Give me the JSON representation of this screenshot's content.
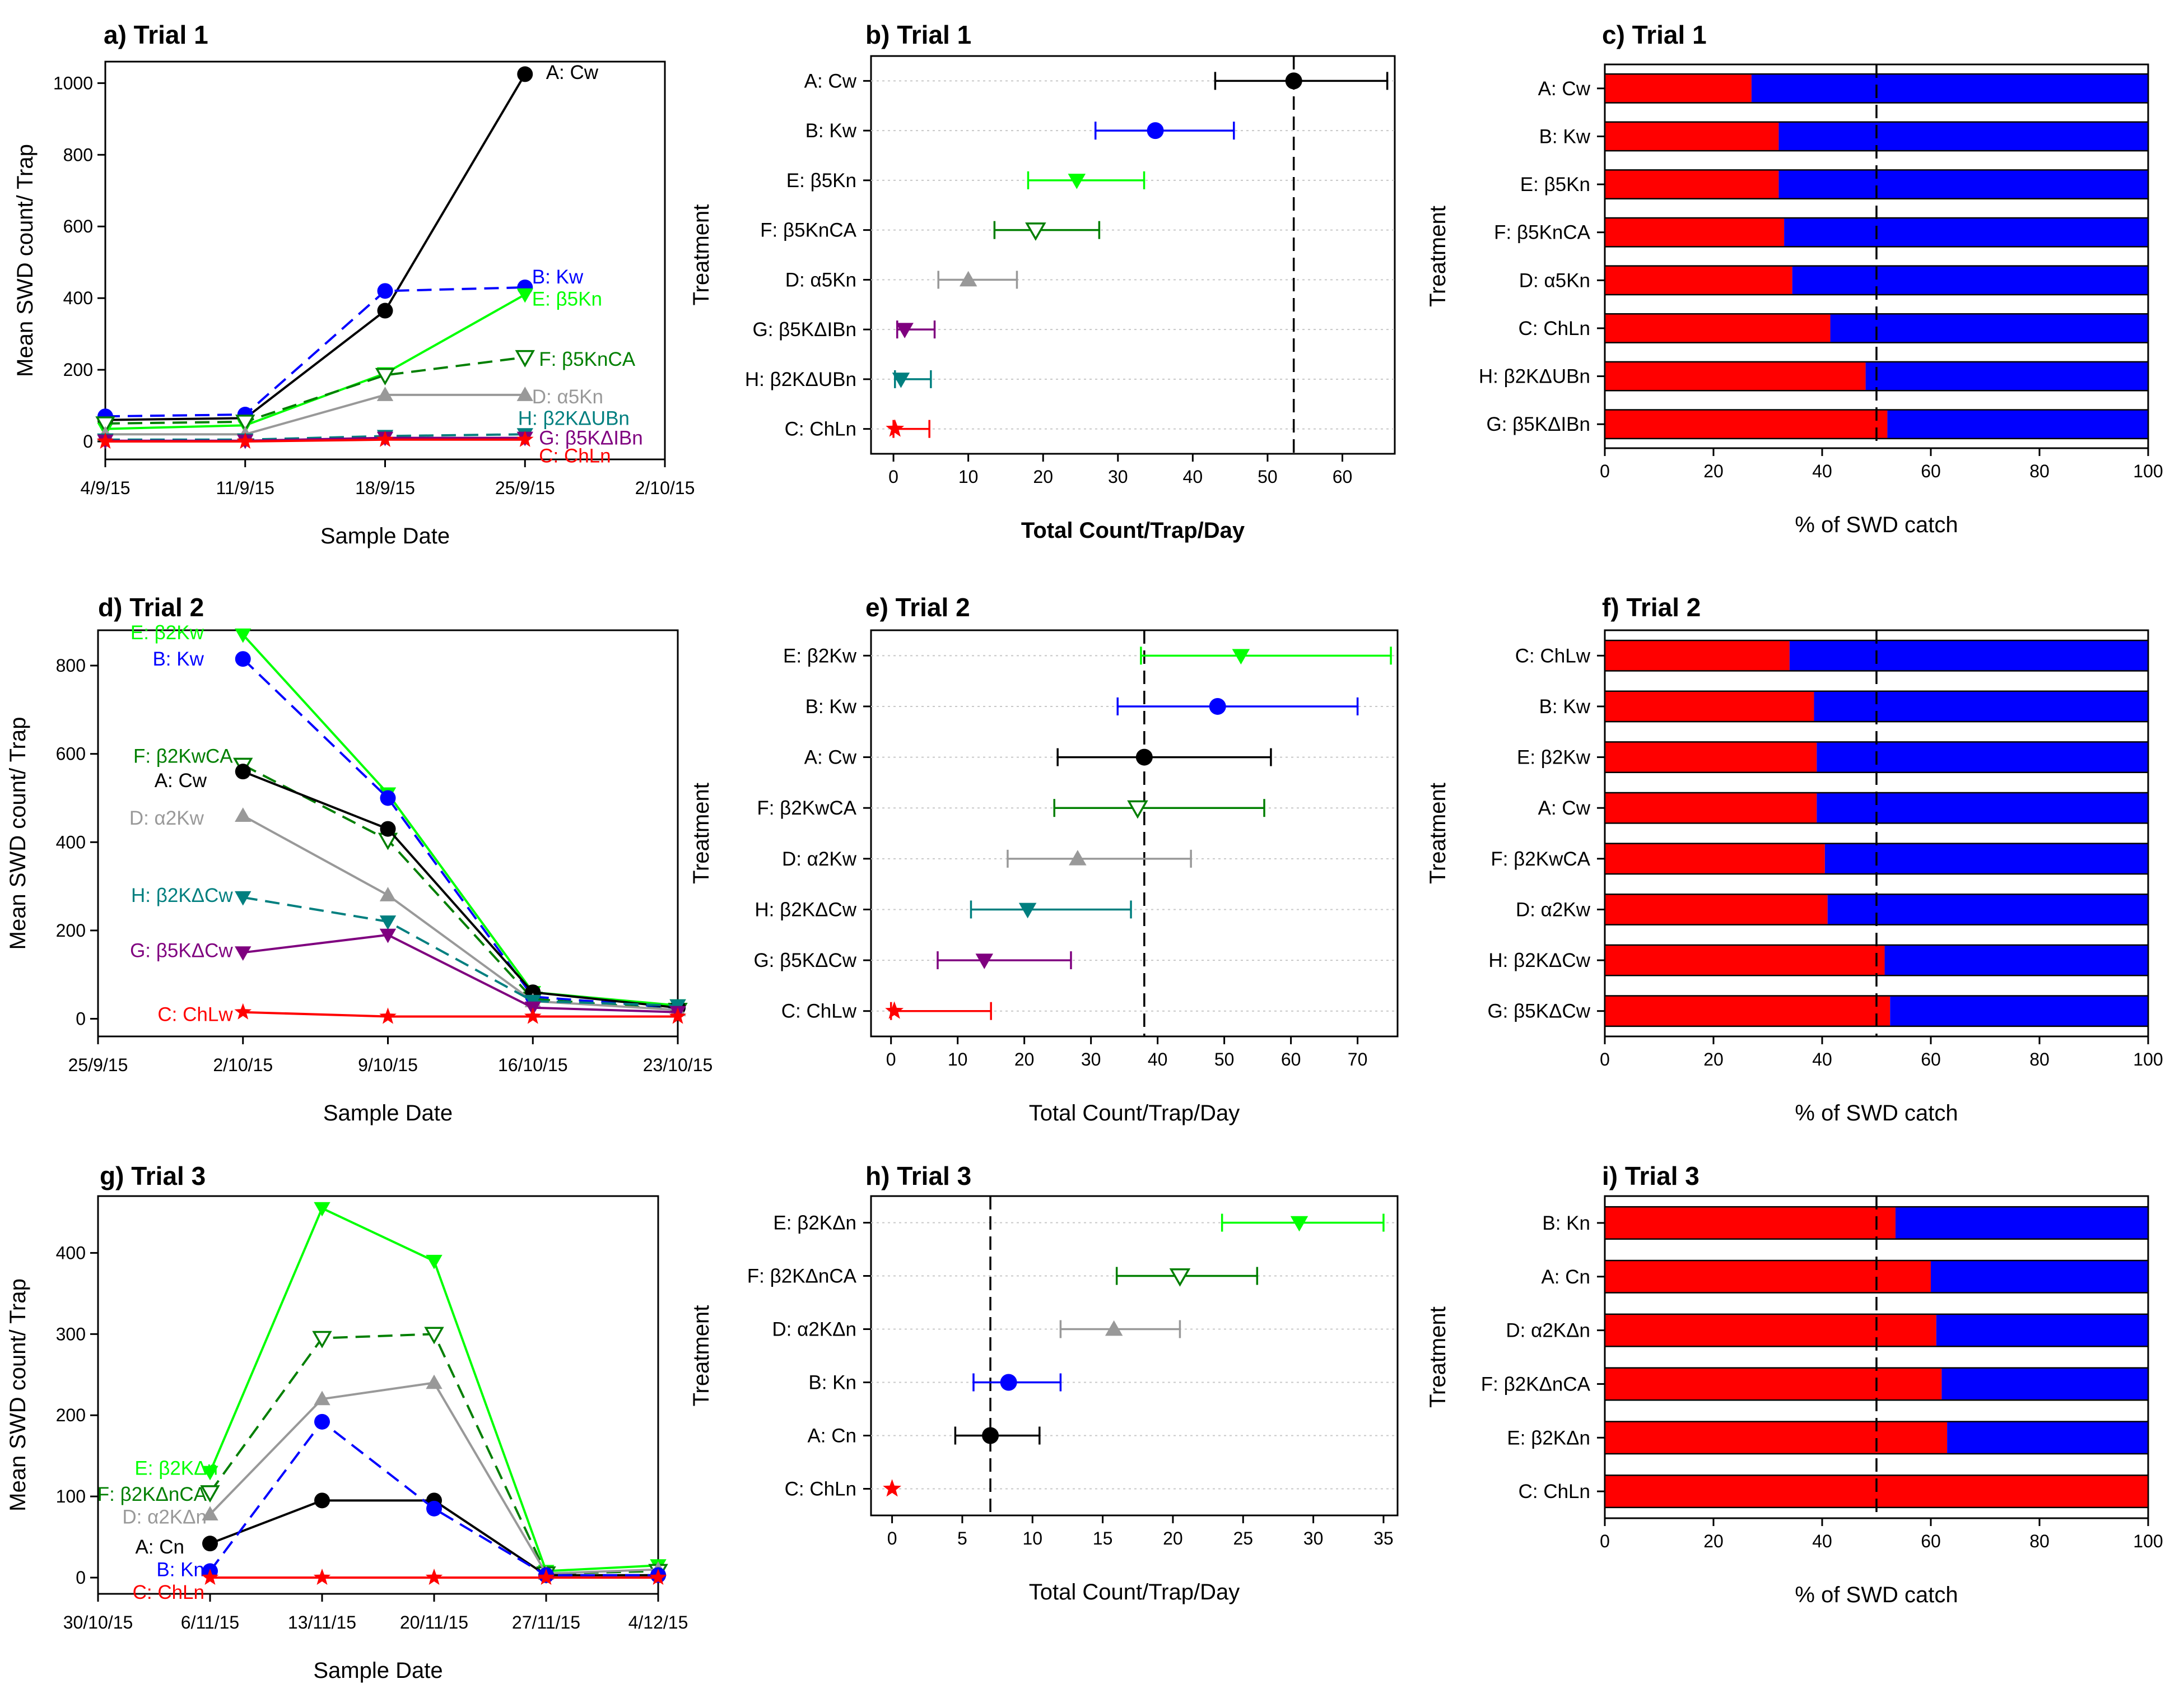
{
  "chart_data": [
    {
      "panel": "a",
      "type": "line",
      "title": "a) Trial 1",
      "xlabel": "Sample Date",
      "ylabel": "Mean SWD count/ Trap",
      "x_ticks": [
        "4/9/15",
        "11/9/15",
        "18/9/15",
        "25/9/15",
        "2/10/15"
      ],
      "xlim": [
        0,
        4
      ],
      "ylim": [
        -50,
        1060
      ],
      "y_ticks": [
        0,
        200,
        400,
        600,
        800,
        1000
      ],
      "series": [
        {
          "name": "A: Cw",
          "color": "#000000",
          "marker": "circle",
          "dash": false,
          "x": [
            0,
            1,
            2,
            3
          ],
          "values": [
            60,
            65,
            365,
            1025
          ],
          "label": "A: Cw",
          "label_x": 3.15,
          "label_y": 1030,
          "label_anchor": "start"
        },
        {
          "name": "B: Kw",
          "color": "#0000ff",
          "marker": "circle",
          "dash": true,
          "x": [
            0,
            1,
            2,
            3
          ],
          "values": [
            70,
            75,
            420,
            430
          ],
          "label": "B: Kw",
          "label_x": 3.05,
          "label_y": 460,
          "label_anchor": "start"
        },
        {
          "name": "E: β5Kn",
          "color": "#00ff00",
          "marker": "tri-down",
          "dash": false,
          "x": [
            0,
            1,
            2,
            3
          ],
          "values": [
            35,
            45,
            190,
            410
          ],
          "label": "E: β5Kn",
          "label_x": 3.05,
          "label_y": 398,
          "label_anchor": "start"
        },
        {
          "name": "F: β5KnCA",
          "color": "#007f00",
          "marker": "tri-down-open",
          "dash": true,
          "x": [
            0,
            1,
            2,
            3
          ],
          "values": [
            50,
            55,
            185,
            235
          ],
          "label": "F: β5KnCA",
          "label_x": 3.1,
          "label_y": 230,
          "label_anchor": "start"
        },
        {
          "name": "D: α5Kn",
          "color": "#999999",
          "marker": "tri-up",
          "dash": false,
          "x": [
            0,
            1,
            2,
            3
          ],
          "values": [
            20,
            20,
            130,
            130
          ],
          "label": "D: α5Kn",
          "label_x": 3.05,
          "label_y": 125,
          "label_anchor": "start"
        },
        {
          "name": "H: β2KΔUBn",
          "color": "#007f7f",
          "marker": "tri-down",
          "dash": true,
          "x": [
            0,
            1,
            2,
            3
          ],
          "values": [
            5,
            5,
            15,
            20
          ],
          "label": "H: β2KΔUBn",
          "label_x": 2.95,
          "label_y": 65,
          "label_anchor": "start"
        },
        {
          "name": "G: β5KΔIBn",
          "color": "#7f007f",
          "marker": "tri-down",
          "dash": false,
          "x": [
            0,
            1,
            2,
            3
          ],
          "values": [
            2,
            2,
            10,
            10
          ],
          "label": "G: β5KΔIBn",
          "label_x": 3.1,
          "label_y": 10,
          "label_anchor": "start"
        },
        {
          "name": "C: ChLn",
          "color": "#ff0000",
          "marker": "star",
          "dash": false,
          "x": [
            0,
            1,
            2,
            3
          ],
          "values": [
            0,
            0,
            5,
            5
          ],
          "label": "C: ChLn",
          "label_x": 3.1,
          "label_y": -40,
          "label_anchor": "start"
        }
      ]
    },
    {
      "panel": "b",
      "type": "dot",
      "title": "b) Trial 1",
      "xlabel": "Total Count/Trap/Day",
      "ylabel": "Treatment",
      "xlim": [
        -3,
        67
      ],
      "x_ticks": [
        0,
        10,
        20,
        30,
        40,
        50,
        60
      ],
      "reference_line": 53.5,
      "categories": [
        "A: Cw",
        "B: Kw",
        "E: β5Kn",
        "F: β5KnCA",
        "D: α5Kn",
        "G: β5KΔIBn",
        "H: β2KΔUBn",
        "C: ChLn"
      ],
      "values": [
        53.5,
        35,
        24.5,
        19,
        10,
        1.5,
        1,
        0.2
      ],
      "lower": [
        43,
        27,
        18,
        13.5,
        6,
        0.5,
        0.2,
        0
      ],
      "upper": [
        66,
        45.5,
        33.5,
        27.5,
        16.5,
        5.5,
        5,
        4.8
      ],
      "colors": [
        "#000000",
        "#0000ff",
        "#00ff00",
        "#007f00",
        "#999999",
        "#7f007f",
        "#007f7f",
        "#ff0000"
      ],
      "markers": [
        "circle",
        "circle",
        "tri-down",
        "tri-down-open",
        "tri-up",
        "tri-down",
        "tri-down",
        "star"
      ]
    },
    {
      "panel": "c",
      "type": "bar",
      "title": "c) Trial 1",
      "xlabel": "% of SWD catch",
      "ylabel": "Treatment",
      "xlim": [
        0,
        100
      ],
      "x_ticks": [
        0,
        20,
        40,
        60,
        80,
        100
      ],
      "reference_line": 50,
      "categories": [
        "A: Cw",
        "B: Kw",
        "E: β5Kn",
        "F: β5KnCA",
        "D: α5Kn",
        "C: ChLn",
        "H: β2KΔUBn",
        "G: β5KΔIBn"
      ],
      "values": [
        27,
        32,
        32,
        33,
        34.5,
        41.5,
        48,
        52
      ],
      "colors": {
        "part": "#ff0000",
        "rest": "#0000ff"
      }
    },
    {
      "panel": "d",
      "type": "line",
      "title": "d) Trial 2",
      "xlabel": "Sample Date",
      "ylabel": "Mean SWD count/ Trap",
      "x_ticks": [
        "25/9/15",
        "2/10/15",
        "9/10/15",
        "16/10/15",
        "23/10/15"
      ],
      "xlim": [
        0,
        4
      ],
      "ylim": [
        -40,
        880
      ],
      "y_ticks": [
        0,
        200,
        400,
        600,
        800
      ],
      "series": [
        {
          "name": "E: β2Kw",
          "color": "#00ff00",
          "marker": "tri-down",
          "dash": false,
          "x": [
            1,
            2,
            3,
            4
          ],
          "values": [
            870,
            510,
            60,
            30
          ],
          "label": "E: β2Kw",
          "label_x": 0.73,
          "label_y": 875,
          "label_anchor": "end"
        },
        {
          "name": "B: Kw",
          "color": "#0000ff",
          "marker": "circle",
          "dash": true,
          "x": [
            1,
            2,
            3,
            4
          ],
          "values": [
            815,
            500,
            50,
            25
          ],
          "label": "B: Kw",
          "label_x": 0.73,
          "label_y": 815,
          "label_anchor": "end"
        },
        {
          "name": "F: β2KwCA",
          "color": "#007f00",
          "marker": "tri-down-open",
          "dash": true,
          "x": [
            1,
            2,
            3,
            4
          ],
          "values": [
            575,
            405,
            45,
            20
          ],
          "label": "F: β2KwCA",
          "label_x": 0.93,
          "label_y": 595,
          "label_anchor": "end"
        },
        {
          "name": "A: Cw",
          "color": "#000000",
          "marker": "circle",
          "dash": false,
          "x": [
            1,
            2,
            3,
            4
          ],
          "values": [
            560,
            430,
            60,
            25
          ],
          "label": "A: Cw",
          "label_x": 0.75,
          "label_y": 540,
          "label_anchor": "end"
        },
        {
          "name": "D: α2Kw",
          "color": "#999999",
          "marker": "tri-up",
          "dash": false,
          "x": [
            1,
            2,
            3,
            4
          ],
          "values": [
            460,
            280,
            40,
            20
          ],
          "label": "D: α2Kw",
          "label_x": 0.73,
          "label_y": 455,
          "label_anchor": "end"
        },
        {
          "name": "H: β2KΔCw",
          "color": "#007f7f",
          "marker": "tri-down",
          "dash": true,
          "x": [
            1,
            2,
            3,
            4
          ],
          "values": [
            275,
            220,
            40,
            30
          ],
          "label": "H: β2KΔCw",
          "label_x": 0.93,
          "label_y": 280,
          "label_anchor": "end"
        },
        {
          "name": "G: β5KΔCw",
          "color": "#7f007f",
          "marker": "tri-down",
          "dash": false,
          "x": [
            1,
            2,
            3,
            4
          ],
          "values": [
            150,
            190,
            25,
            15
          ],
          "label": "G: β5KΔCw",
          "label_x": 0.93,
          "label_y": 155,
          "label_anchor": "end"
        },
        {
          "name": "C: ChLw",
          "color": "#ff0000",
          "marker": "star",
          "dash": false,
          "x": [
            1,
            2,
            3,
            4
          ],
          "values": [
            15,
            5,
            5,
            5
          ],
          "label": "C: ChLw",
          "label_x": 0.93,
          "label_y": 10,
          "label_anchor": "end"
        }
      ]
    },
    {
      "panel": "e",
      "type": "dot",
      "title": "e) Trial 2",
      "xlabel": "Total Count/Trap/Day",
      "ylabel": "Treatment",
      "xlim": [
        -3,
        76
      ],
      "x_ticks": [
        0,
        10,
        20,
        30,
        40,
        50,
        60,
        70
      ],
      "reference_line": 38,
      "categories": [
        "E: β2Kw",
        "B: Kw",
        "A: Cw",
        "F: β2KwCA",
        "D: α2Kw",
        "H: β2KΔCw",
        "G: β5KΔCw",
        "C: ChLw"
      ],
      "values": [
        52.5,
        49,
        38,
        37,
        28,
        20.5,
        14,
        0.5
      ],
      "lower": [
        37.5,
        34,
        25,
        24.5,
        17.5,
        12,
        7,
        0
      ],
      "upper": [
        75,
        70,
        57,
        56,
        45,
        36,
        27,
        15
      ],
      "colors": [
        "#00ff00",
        "#0000ff",
        "#000000",
        "#007f00",
        "#999999",
        "#007f7f",
        "#7f007f",
        "#ff0000"
      ],
      "markers": [
        "tri-down",
        "circle",
        "circle",
        "tri-down-open",
        "tri-up",
        "tri-down",
        "tri-down",
        "star"
      ]
    },
    {
      "panel": "f",
      "type": "bar",
      "title": "f) Trial 2",
      "xlabel": "% of SWD catch",
      "ylabel": "Treatment",
      "xlim": [
        0,
        100
      ],
      "x_ticks": [
        0,
        20,
        40,
        60,
        80,
        100
      ],
      "reference_line": 50,
      "categories": [
        "C: ChLw",
        "B: Kw",
        "E: β2Kw",
        "A: Cw",
        "F: β2KwCA",
        "D: α2Kw",
        "H: β2KΔCw",
        "G: β5KΔCw"
      ],
      "values": [
        34,
        38.5,
        39,
        39,
        40.5,
        41,
        51.5,
        52.5
      ],
      "colors": {
        "part": "#ff0000",
        "rest": "#0000ff"
      }
    },
    {
      "panel": "g",
      "type": "line",
      "title": "g) Trial 3",
      "xlabel": "Sample Date",
      "ylabel": "Mean SWD count/ Trap",
      "x_ticks": [
        "30/10/15",
        "6/11/15",
        "13/11/15",
        "20/11/15",
        "27/11/15",
        "4/12/15"
      ],
      "xlim": [
        0,
        5
      ],
      "ylim": [
        -20,
        470
      ],
      "y_ticks": [
        0,
        100,
        200,
        300,
        400
      ],
      "series": [
        {
          "name": "E: β2KΔn",
          "color": "#00ff00",
          "marker": "tri-down",
          "dash": false,
          "x": [
            1,
            2,
            3,
            4,
            5
          ],
          "values": [
            130,
            455,
            390,
            8,
            15
          ],
          "label": "E: β2KΔn",
          "label_x": 1.07,
          "label_y": 135,
          "label_anchor": "end"
        },
        {
          "name": "F: β2KΔnCA",
          "color": "#007f00",
          "marker": "tri-down-open",
          "dash": true,
          "x": [
            1,
            2,
            3,
            4,
            5
          ],
          "values": [
            105,
            295,
            300,
            5,
            8
          ],
          "label": "F: β2KΔnCA",
          "label_x": 0.97,
          "label_y": 103,
          "label_anchor": "end"
        },
        {
          "name": "D: α2KΔn",
          "color": "#999999",
          "marker": "tri-up",
          "dash": false,
          "x": [
            1,
            2,
            3,
            4,
            5
          ],
          "values": [
            78,
            220,
            240,
            5,
            10
          ],
          "label": "D: α2KΔn",
          "label_x": 0.97,
          "label_y": 75,
          "label_anchor": "end"
        },
        {
          "name": "A: Cn",
          "color": "#000000",
          "marker": "circle",
          "dash": false,
          "x": [
            1,
            2,
            3,
            4,
            5
          ],
          "values": [
            42,
            95,
            95,
            3,
            3
          ],
          "label": "A: Cn",
          "label_x": 0.77,
          "label_y": 38,
          "label_anchor": "end"
        },
        {
          "name": "B: Kn",
          "color": "#0000ff",
          "marker": "circle",
          "dash": true,
          "x": [
            1,
            2,
            3,
            4,
            5
          ],
          "values": [
            8,
            192,
            85,
            3,
            3
          ],
          "label": "B: Kn",
          "label_x": 0.95,
          "label_y": 10,
          "label_anchor": "end"
        },
        {
          "name": "C: ChLn",
          "color": "#ff0000",
          "marker": "star",
          "dash": false,
          "x": [
            1,
            2,
            3,
            4,
            5
          ],
          "values": [
            0,
            0,
            0,
            0,
            0
          ],
          "label": "C: ChLn",
          "label_x": 0.95,
          "label_y": -18,
          "label_anchor": "end"
        }
      ]
    },
    {
      "panel": "h",
      "type": "dot",
      "title": "h) Trial 3",
      "xlabel": "Total Count/Trap/Day",
      "ylabel": "Treatment",
      "xlim": [
        -1.5,
        36
      ],
      "x_ticks": [
        0,
        5,
        10,
        15,
        20,
        25,
        30,
        35
      ],
      "reference_line": 7,
      "categories": [
        "E: β2KΔn",
        "F: β2KΔnCA",
        "D: α2KΔn",
        "B: Kn",
        "A: Cn",
        "C: ChLn"
      ],
      "values": [
        29,
        20.5,
        15.8,
        8.3,
        7,
        0
      ],
      "lower": [
        23.5,
        16,
        12,
        5.8,
        4.5,
        0
      ],
      "upper": [
        35,
        26,
        20.5,
        12,
        10.5,
        0
      ],
      "colors": [
        "#00ff00",
        "#007f00",
        "#999999",
        "#0000ff",
        "#000000",
        "#ff0000"
      ],
      "markers": [
        "tri-down",
        "tri-down-open",
        "tri-up",
        "circle",
        "circle",
        "star"
      ]
    },
    {
      "panel": "i",
      "type": "bar",
      "title": "i) Trial 3",
      "xlabel": "% of SWD catch",
      "ylabel": "Treatment",
      "xlim": [
        0,
        100
      ],
      "x_ticks": [
        0,
        20,
        40,
        60,
        80,
        100
      ],
      "reference_line": 50,
      "categories": [
        "B: Kn",
        "A: Cn",
        "D: α2KΔn",
        "F: β2KΔnCA",
        "E: β2KΔn",
        "C: ChLn"
      ],
      "values": [
        53.5,
        60,
        61,
        62,
        63,
        100
      ],
      "colors": {
        "part": "#ff0000",
        "rest": "#0000ff"
      }
    }
  ]
}
